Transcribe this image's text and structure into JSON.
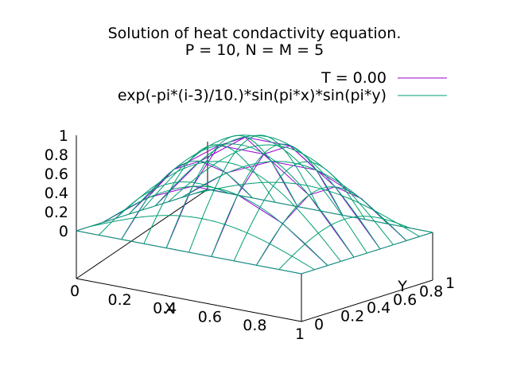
{
  "chart_data": {
    "type": "surface",
    "title": [
      "Solution of heat condactivity equation.",
      "P = 10, N = M = 5"
    ],
    "xlabel": "X",
    "ylabel": "Y",
    "zlabel": "",
    "xlim": [
      0,
      1
    ],
    "ylim": [
      0,
      1
    ],
    "zlim": [
      0,
      1
    ],
    "x_ticks": [
      "0",
      "0.2",
      "0.4",
      "0.6",
      "0.8",
      "1"
    ],
    "y_ticks": [
      "0",
      "0.2",
      "0.4",
      "0.6",
      "0.8",
      "1"
    ],
    "z_ticks": [
      "0",
      "0.2",
      "0.4",
      "0.6",
      "0.8",
      "1"
    ],
    "legend_position": "top-right",
    "grid": false,
    "series": [
      {
        "name": "T = 0.00",
        "color": "#9400d3",
        "kind": "numeric grid",
        "x": [
          0,
          0.2,
          0.4,
          0.6,
          0.8,
          1
        ],
        "y": [
          0,
          0.2,
          0.4,
          0.6,
          0.8,
          1
        ],
        "z": [
          [
            0,
            0,
            0,
            0,
            0,
            0
          ],
          [
            0,
            0.35,
            0.56,
            0.56,
            0.35,
            0
          ],
          [
            0,
            0.56,
            0.9,
            0.9,
            0.56,
            0
          ],
          [
            0,
            0.56,
            0.9,
            0.9,
            0.56,
            0
          ],
          [
            0,
            0.35,
            0.56,
            0.56,
            0.35,
            0
          ],
          [
            0,
            0,
            0,
            0,
            0,
            0
          ]
        ]
      },
      {
        "name": "exp(-pi*(i-3)/10.)*sin(pi*x)*sin(pi*y)",
        "color": "#009e73",
        "kind": "function",
        "samples": 11,
        "scale": 1.0
      }
    ]
  }
}
